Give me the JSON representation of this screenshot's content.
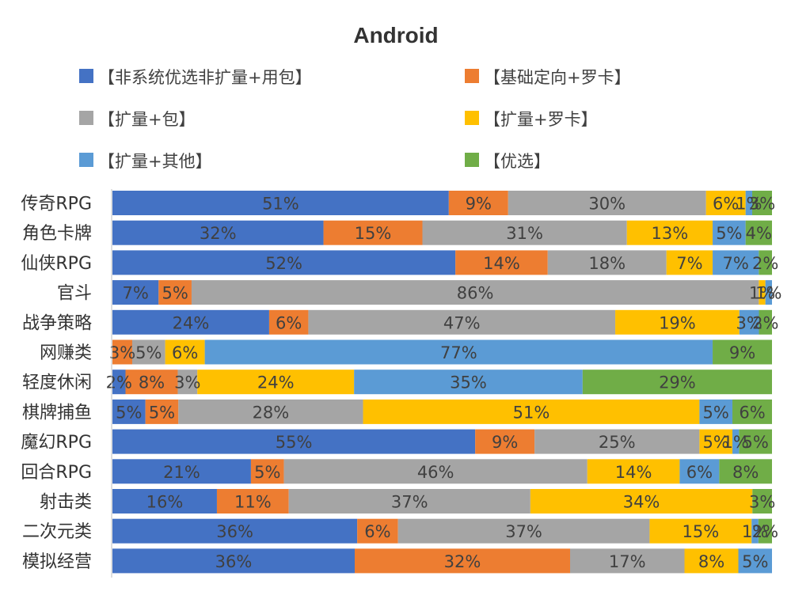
{
  "chart_data": {
    "type": "bar",
    "orientation": "horizontal",
    "stacked": "percent",
    "title": "Android",
    "legend_position": "top",
    "xlabel": "",
    "ylabel": "",
    "categories": [
      "传奇RPG",
      "角色卡牌",
      "仙侠RPG",
      "官斗",
      "战争策略",
      "网赚类",
      "轻度休闲",
      "棋牌捕鱼",
      "魔幻RPG",
      "回合RPG",
      "射击类",
      "二次元类",
      "模拟经营"
    ],
    "series": [
      {
        "name": "【非系统优选非扩量+用包】",
        "color": "#4472C4",
        "values": [
          51,
          32,
          52,
          7,
          24,
          0,
          2,
          5,
          55,
          21,
          16,
          36,
          36
        ],
        "labels": [
          "51%",
          "32%",
          "52%",
          "7%",
          "24%",
          "",
          "2%",
          "5%",
          "55%",
          "21%",
          "16%",
          "36%",
          "36%"
        ]
      },
      {
        "name": "【基础定向+罗卡】",
        "color": "#ED7D31",
        "values": [
          9,
          15,
          14,
          5,
          6,
          3,
          8,
          5,
          9,
          5,
          11,
          6,
          32
        ],
        "labels": [
          "9%",
          "15%",
          "14%",
          "5%",
          "6%",
          "3%",
          "8%",
          "5%",
          "9%",
          "5%",
          "11%",
          "6%",
          "32%"
        ]
      },
      {
        "name": "【扩量+包】",
        "color": "#A5A5A5",
        "values": [
          30,
          31,
          18,
          86,
          47,
          5,
          3,
          28,
          25,
          46,
          37,
          37,
          17
        ],
        "labels": [
          "30%",
          "31%",
          "18%",
          "86%",
          "47%",
          "5%",
          "3%",
          "28%",
          "25%",
          "46%",
          "37%",
          "37%",
          "17%"
        ]
      },
      {
        "name": "【扩量+罗卡】",
        "color": "#FFC000",
        "values": [
          6,
          13,
          7,
          1,
          19,
          6,
          24,
          51,
          5,
          14,
          34,
          15,
          8
        ],
        "labels": [
          "6%",
          "13%",
          "7%",
          "1%",
          "19%",
          "6%",
          "24%",
          "51%",
          "5%",
          "14%",
          "34%",
          "15%",
          "8%"
        ]
      },
      {
        "name": "【扩量+其他】",
        "color": "#5B9BD5",
        "values": [
          1,
          5,
          7,
          1,
          3,
          77,
          35,
          5,
          1,
          6,
          0,
          1,
          5
        ],
        "labels": [
          "1%",
          "5%",
          "7%",
          "1%",
          "3%",
          "77%",
          "35%",
          "5%",
          "1%",
          "6%",
          "",
          "1%",
          "5%"
        ]
      },
      {
        "name": "【优选】",
        "color": "#70AD47",
        "values": [
          3,
          4,
          2,
          0,
          2,
          9,
          29,
          6,
          5,
          8,
          3,
          2,
          0
        ],
        "labels": [
          "3%",
          "4%",
          "2%",
          "",
          "2%",
          "9%",
          "29%",
          "6%",
          "5%",
          "8%",
          "3%",
          "2%",
          ""
        ]
      }
    ]
  }
}
